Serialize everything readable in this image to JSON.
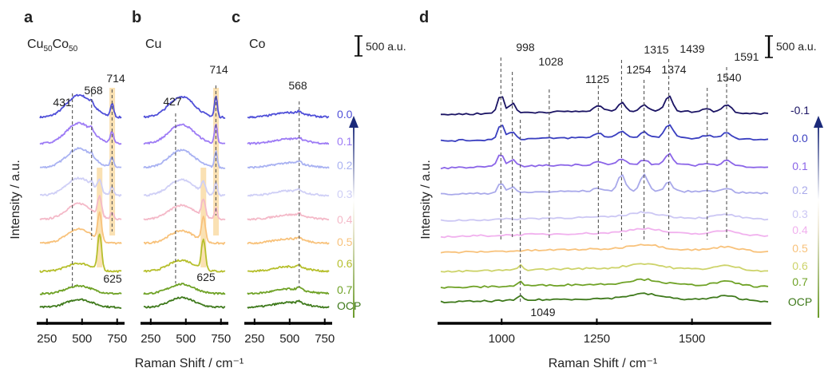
{
  "chart_data": [
    {
      "panel": "a",
      "sample": "Cu50Co50",
      "sample_base": "Cu",
      "sample_sub1": "50",
      "sample_mid": "Co",
      "sample_sub2": "50",
      "type": "line",
      "x": [
        200,
        780
      ],
      "xticks": [
        250,
        500,
        750
      ],
      "peaks": [
        {
          "label": "431",
          "x": 431
        },
        {
          "label": "568",
          "x": 568
        },
        {
          "label": "714",
          "x": 714
        },
        {
          "label": "625",
          "x": 625
        }
      ],
      "highlight_bands": [
        {
          "from": 695,
          "to": 735
        },
        {
          "from": 605,
          "to": 645
        }
      ],
      "potentials": [
        "0.0",
        "0.1",
        "0.2",
        "0.3",
        "0.4",
        "0.5",
        "0.6",
        "0.7",
        "OCP"
      ]
    },
    {
      "panel": "b",
      "sample": "Cu",
      "type": "line",
      "xticks": [
        250,
        500,
        750
      ],
      "peaks": [
        {
          "label": "427",
          "x": 427
        },
        {
          "label": "714",
          "x": 714
        },
        {
          "label": "625",
          "x": 625
        }
      ],
      "highlight_bands": [
        {
          "from": 695,
          "to": 735
        },
        {
          "from": 605,
          "to": 645
        }
      ],
      "potentials": [
        "0.0",
        "0.1",
        "0.2",
        "0.3",
        "0.4",
        "0.5",
        "0.6",
        "0.7",
        "OCP"
      ]
    },
    {
      "panel": "c",
      "sample": "Co",
      "type": "line",
      "xticks": [
        250,
        500,
        750
      ],
      "peaks": [
        {
          "label": "568",
          "x": 568
        }
      ],
      "scale_bar": "500 a.u.",
      "potentials": [
        "0.0",
        "0.1",
        "0.2",
        "0.3",
        "0.4",
        "0.5",
        "0.6",
        "0.7",
        "OCP"
      ]
    },
    {
      "panel": "d",
      "type": "line",
      "xticks": [
        1000,
        1250,
        1500
      ],
      "peaks": [
        {
          "label": "998",
          "x": 998
        },
        {
          "label": "1028",
          "x": 1028
        },
        {
          "label": "1125",
          "x": 1125
        },
        {
          "label": "1254",
          "x": 1254
        },
        {
          "label": "1315",
          "x": 1315
        },
        {
          "label": "1374",
          "x": 1374
        },
        {
          "label": "1439",
          "x": 1439
        },
        {
          "label": "1540",
          "x": 1540
        },
        {
          "label": "1591",
          "x": 1591
        },
        {
          "label": "1049",
          "x": 1049
        }
      ],
      "scale_bar": "500 a.u.",
      "potentials": [
        "-0.1",
        "0.0",
        "0.1",
        "0.2",
        "0.3",
        "0.4",
        "0.5",
        "0.6",
        "0.7",
        "OCP"
      ]
    }
  ],
  "labels": {
    "ylabel": "Intensity / a.u.",
    "xlabel": "Raman Shift / cm⁻¹"
  },
  "colors": {
    "ramp_left": [
      "#4f4fd8",
      "#9d7bf5",
      "#a9b2f2",
      "#cfcff6",
      "#f4b9c8",
      "#f8c27b",
      "#b6bf2c",
      "#6fa226",
      "#3f7a1c"
    ],
    "ramp_right": [
      "#1b1464",
      "#3a3fc0",
      "#8b65e8",
      "#a9a9ea",
      "#ccc7f4",
      "#f1b1ee",
      "#f8c27b",
      "#cdd36a",
      "#6fa226",
      "#3f7a1c"
    ],
    "highlight": "#f8d79a",
    "dash": "#555555",
    "axis": "#000000"
  }
}
